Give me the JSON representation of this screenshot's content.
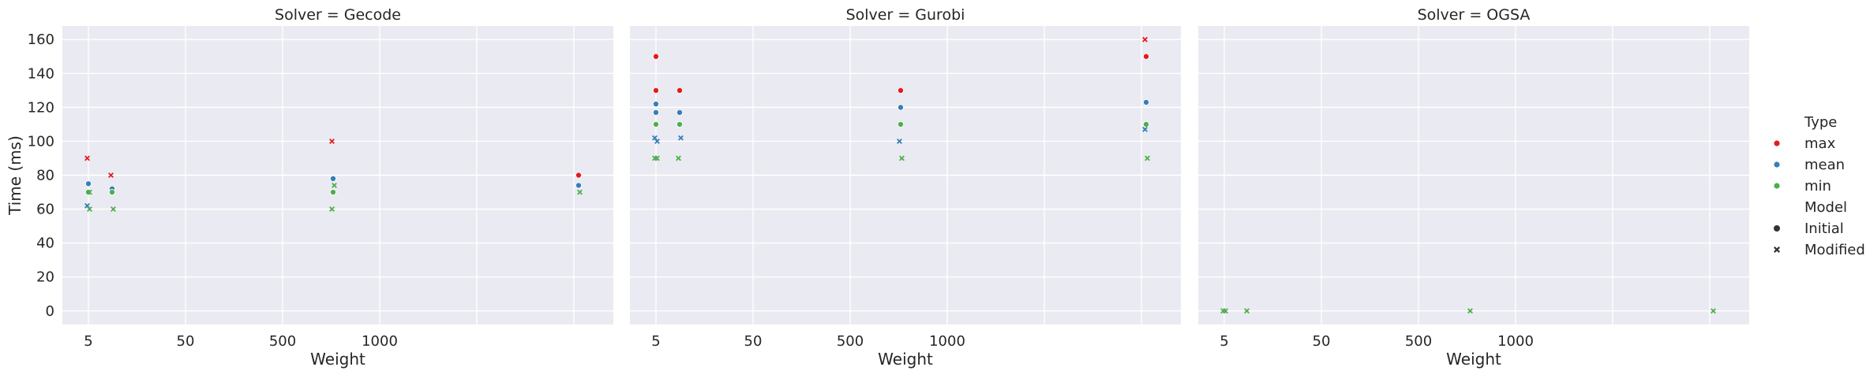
{
  "chart_data": {
    "type": "scatter",
    "x_label": "Weight",
    "y_label": "Time (ms)",
    "x_tick_labels": [
      "5",
      "50",
      "500",
      "1000"
    ],
    "y_ticks": [
      0,
      20,
      40,
      60,
      80,
      100,
      120,
      140,
      160
    ],
    "y_range": [
      -8,
      168
    ],
    "grid": true,
    "legend_placement": "right",
    "legend": {
      "hue_title": "Type",
      "hue": [
        {
          "label": "max",
          "color": "#e41a1c"
        },
        {
          "label": "mean",
          "color": "#377eb8"
        },
        {
          "label": "min",
          "color": "#4daf4a"
        }
      ],
      "style_title": "Model",
      "style": [
        {
          "label": "Initial",
          "marker": "circle"
        },
        {
          "label": "Modified",
          "marker": "x"
        }
      ]
    },
    "panels": [
      {
        "title": "Solver = Gecode",
        "points": [
          {
            "x": 5,
            "y": 75,
            "type": "mean",
            "model": "Initial"
          },
          {
            "x": 5,
            "y": 70,
            "type": "min",
            "model": "Initial"
          },
          {
            "x": 5,
            "y": 90,
            "type": "max",
            "model": "Modified"
          },
          {
            "x": 5,
            "y": 70,
            "type": "min",
            "model": "Modified"
          },
          {
            "x": 5,
            "y": 62,
            "type": "mean",
            "model": "Modified"
          },
          {
            "x": 5,
            "y": 60,
            "type": "min",
            "model": "Modified"
          },
          {
            "x": 10,
            "y": 72,
            "type": "mean",
            "model": "Initial"
          },
          {
            "x": 10,
            "y": 70,
            "type": "min",
            "model": "Initial"
          },
          {
            "x": 10,
            "y": 80,
            "type": "max",
            "model": "Modified"
          },
          {
            "x": 10,
            "y": 60,
            "type": "min",
            "model": "Modified"
          },
          {
            "x": 1000,
            "y": 78,
            "type": "mean",
            "model": "Initial"
          },
          {
            "x": 1000,
            "y": 70,
            "type": "min",
            "model": "Initial"
          },
          {
            "x": 1000,
            "y": 100,
            "type": "max",
            "model": "Modified"
          },
          {
            "x": 1000,
            "y": 74,
            "type": "min",
            "model": "Modified"
          },
          {
            "x": 1000,
            "y": 60,
            "type": "min",
            "model": "Modified"
          },
          {
            "x": 10000,
            "y": 80,
            "type": "max",
            "model": "Initial"
          },
          {
            "x": 10000,
            "y": 74,
            "type": "mean",
            "model": "Initial"
          },
          {
            "x": 10000,
            "y": 70,
            "type": "min",
            "model": "Modified"
          }
        ]
      },
      {
        "title": "Solver = Gurobi",
        "points": [
          {
            "x": 5,
            "y": 150,
            "type": "max",
            "model": "Initial"
          },
          {
            "x": 5,
            "y": 130,
            "type": "max",
            "model": "Initial"
          },
          {
            "x": 5,
            "y": 122,
            "type": "mean",
            "model": "Initial"
          },
          {
            "x": 5,
            "y": 117,
            "type": "mean",
            "model": "Initial"
          },
          {
            "x": 5,
            "y": 110,
            "type": "min",
            "model": "Initial"
          },
          {
            "x": 5,
            "y": 110,
            "type": "min",
            "model": "Initial"
          },
          {
            "x": 5,
            "y": 102,
            "type": "mean",
            "model": "Modified"
          },
          {
            "x": 5,
            "y": 100,
            "type": "mean",
            "model": "Modified"
          },
          {
            "x": 5,
            "y": 90,
            "type": "min",
            "model": "Modified"
          },
          {
            "x": 5,
            "y": 90,
            "type": "min",
            "model": "Modified"
          },
          {
            "x": 10,
            "y": 130,
            "type": "max",
            "model": "Initial"
          },
          {
            "x": 10,
            "y": 117,
            "type": "mean",
            "model": "Initial"
          },
          {
            "x": 10,
            "y": 110,
            "type": "min",
            "model": "Initial"
          },
          {
            "x": 10,
            "y": 102,
            "type": "mean",
            "model": "Modified"
          },
          {
            "x": 10,
            "y": 90,
            "type": "min",
            "model": "Modified"
          },
          {
            "x": 1000,
            "y": 130,
            "type": "max",
            "model": "Initial"
          },
          {
            "x": 1000,
            "y": 120,
            "type": "mean",
            "model": "Initial"
          },
          {
            "x": 1000,
            "y": 110,
            "type": "min",
            "model": "Initial"
          },
          {
            "x": 1000,
            "y": 100,
            "type": "mean",
            "model": "Modified"
          },
          {
            "x": 1000,
            "y": 90,
            "type": "min",
            "model": "Modified"
          },
          {
            "x": 10000,
            "y": 160,
            "type": "max",
            "model": "Modified"
          },
          {
            "x": 10000,
            "y": 150,
            "type": "max",
            "model": "Initial"
          },
          {
            "x": 10000,
            "y": 123,
            "type": "mean",
            "model": "Initial"
          },
          {
            "x": 10000,
            "y": 110,
            "type": "min",
            "model": "Initial"
          },
          {
            "x": 10000,
            "y": 107,
            "type": "mean",
            "model": "Modified"
          },
          {
            "x": 10000,
            "y": 90,
            "type": "min",
            "model": "Modified"
          }
        ]
      },
      {
        "title": "Solver = OGSA",
        "points": [
          {
            "x": 5,
            "y": 0,
            "type": "min",
            "model": "Modified"
          },
          {
            "x": 5,
            "y": 0,
            "type": "min",
            "model": "Modified"
          },
          {
            "x": 10,
            "y": 0,
            "type": "min",
            "model": "Modified"
          },
          {
            "x": 1000,
            "y": 0,
            "type": "min",
            "model": "Modified"
          },
          {
            "x": 10000,
            "y": 0,
            "type": "min",
            "model": "Modified"
          }
        ]
      }
    ]
  }
}
